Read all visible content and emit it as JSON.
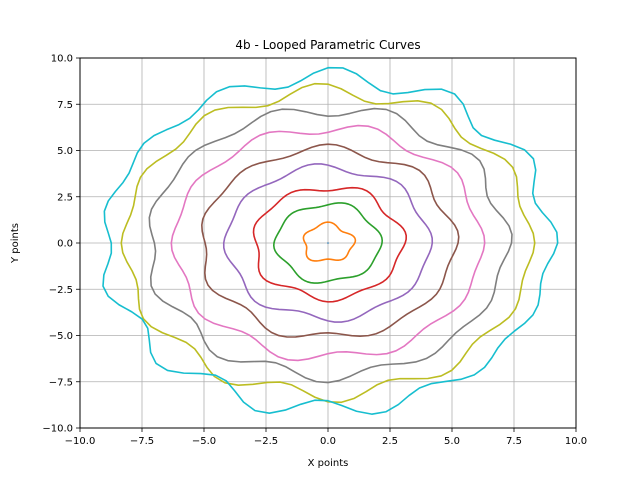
{
  "chart_data": {
    "type": "line",
    "title": "4b - Looped Parametric Curves",
    "xlabel": "X points",
    "ylabel": "Y points",
    "xlim": [
      -10,
      10
    ],
    "ylim": [
      -10,
      10
    ],
    "xticks": [
      -10,
      -7.5,
      -5,
      -2.5,
      0,
      2.5,
      5,
      7.5,
      10
    ],
    "yticks": [
      -10,
      -7.5,
      -5,
      -2.5,
      0,
      2.5,
      5,
      7.5,
      10
    ],
    "xtick_labels": [
      "−10.0",
      "−7.5",
      "−5.0",
      "−2.5",
      "0.0",
      "2.5",
      "5.0",
      "7.5",
      "10.0"
    ],
    "ytick_labels": [
      "−10.0",
      "−7.5",
      "−5.0",
      "−2.5",
      "0.0",
      "2.5",
      "5.0",
      "7.5",
      "10.0"
    ],
    "grid": true,
    "legend": "none",
    "series": [
      {
        "color": "#1f77b4",
        "radius": 0.0,
        "amplitude": 0.0,
        "frequency": 6,
        "phase": 0.0
      },
      {
        "color": "#ff7f0e",
        "radius": 1.0,
        "amplitude": 0.1,
        "frequency": 5,
        "phase": 0.3
      },
      {
        "color": "#2ca02c",
        "radius": 2.1,
        "amplitude": 0.1,
        "frequency": 6,
        "phase": 0.6
      },
      {
        "color": "#d62728",
        "radius": 3.0,
        "amplitude": 0.15,
        "frequency": 7,
        "phase": 0.2
      },
      {
        "color": "#9467bd",
        "radius": 4.1,
        "amplitude": 0.15,
        "frequency": 8,
        "phase": 0.8
      },
      {
        "color": "#8c564b",
        "radius": 5.1,
        "amplitude": 0.18,
        "frequency": 9,
        "phase": 0.4
      },
      {
        "color": "#e377c2",
        "radius": 6.2,
        "amplitude": 0.2,
        "frequency": 10,
        "phase": 1.0
      },
      {
        "color": "#7f7f7f",
        "radius": 7.2,
        "amplitude": 0.25,
        "frequency": 11,
        "phase": 0.5
      },
      {
        "color": "#bcbd22",
        "radius": 8.2,
        "amplitude": 0.28,
        "frequency": 12,
        "phase": 1.2
      },
      {
        "color": "#17becf",
        "radius": 9.0,
        "amplitude": 0.35,
        "frequency": 13,
        "phase": 0.7
      }
    ]
  }
}
